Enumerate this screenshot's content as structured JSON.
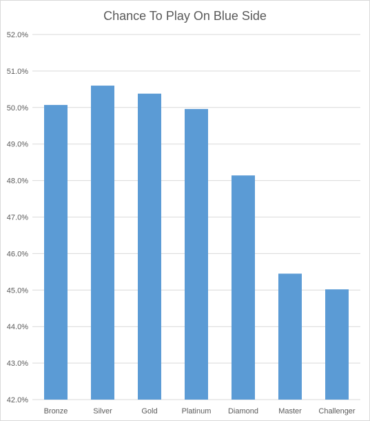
{
  "chart_data": {
    "type": "bar",
    "title": "Chance To Play On Blue Side",
    "xlabel": "",
    "ylabel": "",
    "categories": [
      "Bronze",
      "Silver",
      "Gold",
      "Platinum",
      "Diamond",
      "Master",
      "Challenger"
    ],
    "values": [
      50.07,
      50.6,
      50.38,
      49.96,
      48.14,
      45.45,
      45.02
    ],
    "ylim": [
      42.0,
      52.0
    ],
    "yticks": [
      42.0,
      43.0,
      44.0,
      45.0,
      46.0,
      47.0,
      48.0,
      49.0,
      50.0,
      51.0,
      52.0
    ],
    "ytick_labels": [
      "42.0%",
      "43.0%",
      "44.0%",
      "45.0%",
      "46.0%",
      "47.0%",
      "48.0%",
      "49.0%",
      "50.0%",
      "51.0%",
      "52.0%"
    ],
    "grid": true,
    "legend": "none",
    "bar_color": "#5b9bd5",
    "grid_color": "#d9d9d9"
  }
}
